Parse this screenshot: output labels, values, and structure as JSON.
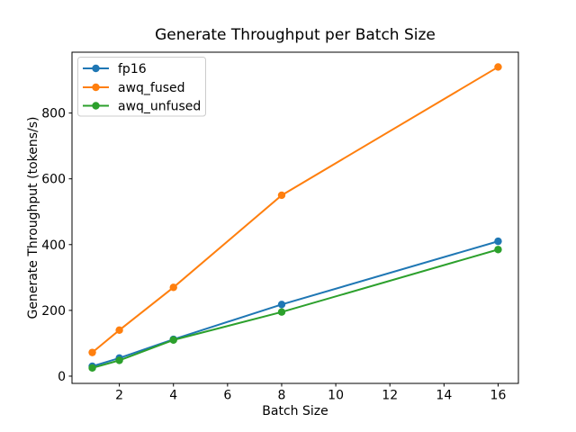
{
  "figure": {
    "background": "#ffffff",
    "frame_color": "#000000"
  },
  "chart_data": {
    "type": "line",
    "title": "Generate Throughput per Batch Size",
    "xlabel": "Batch Size",
    "ylabel": "Generate Throughput (tokens/s)",
    "x": [
      1,
      2,
      4,
      8,
      16
    ],
    "series": [
      {
        "name": "fp16",
        "color": "#1f77b4",
        "values": [
          30,
          55,
          112,
          218,
          410
        ]
      },
      {
        "name": "awq_fused",
        "color": "#ff7f0e",
        "values": [
          72,
          140,
          270,
          550,
          940
        ]
      },
      {
        "name": "awq_unfused",
        "color": "#2ca02c",
        "values": [
          25,
          48,
          110,
          195,
          385
        ]
      }
    ],
    "xlim": [
      0.25,
      16.75
    ],
    "ylim": [
      -22,
      985
    ],
    "xticks": [
      2,
      4,
      6,
      8,
      10,
      12,
      14,
      16
    ],
    "yticks": [
      0,
      200,
      400,
      600,
      800
    ],
    "grid": false,
    "marker": "o",
    "legend_position": "upper left",
    "legend_border_color": "#cccccc"
  }
}
